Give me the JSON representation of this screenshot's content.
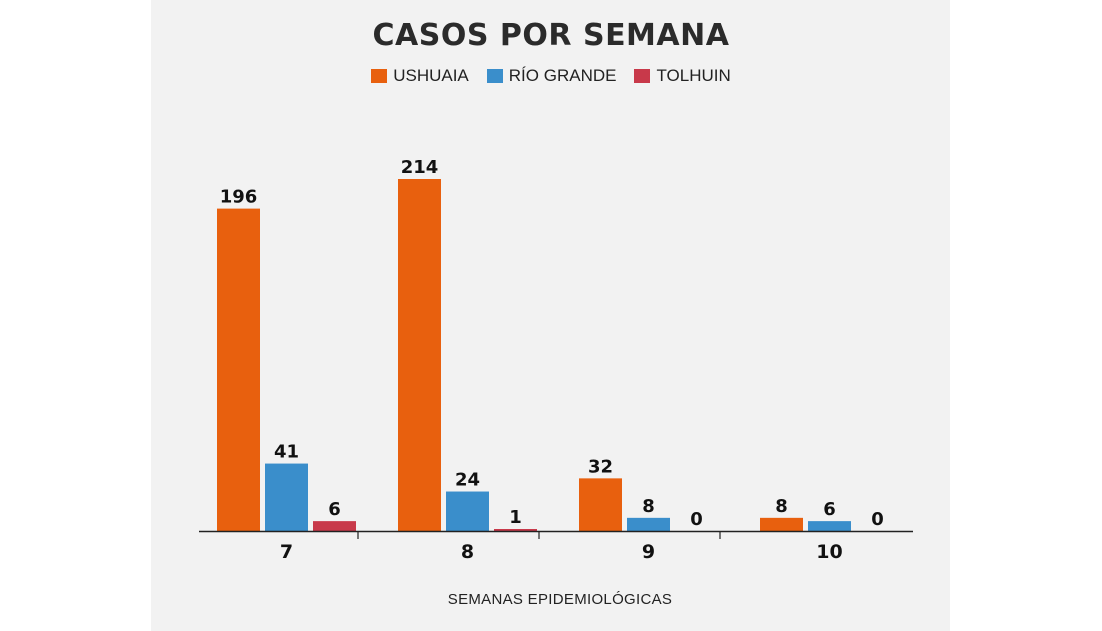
{
  "chart_data": {
    "type": "bar",
    "title": "CASOS POR SEMANA",
    "xlabel": "SEMANAS EPIDEMIOLÓGICAS",
    "ylabel": "",
    "categories": [
      "7",
      "8",
      "9",
      "10"
    ],
    "series": [
      {
        "name": "USHUAIA",
        "color": "#e8600e",
        "values": [
          196,
          214,
          32,
          8
        ]
      },
      {
        "name": "RÍO GRANDE",
        "color": "#3a8ecb",
        "values": [
          41,
          24,
          8,
          6
        ]
      },
      {
        "name": "TOLHUIN",
        "color": "#c8394a",
        "values": [
          6,
          1,
          0,
          0
        ]
      }
    ],
    "ylim": [
      0,
      214
    ],
    "grid": false,
    "legend": "top-center"
  }
}
